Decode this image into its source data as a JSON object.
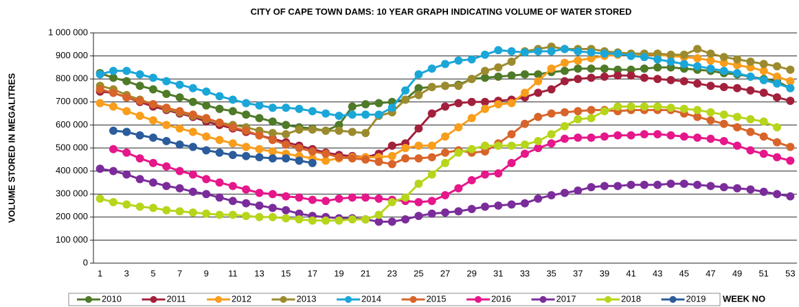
{
  "chart_data": {
    "type": "line",
    "title": "CITY OF CAPE TOWN DAMS: 10 YEAR GRAPH INDICATING VOLUME OF WATER STORED",
    "y_label": "VOLUME STORED IN MEGALITRES",
    "x_label": "WEEK NO",
    "legend": "bottom",
    "grid": true,
    "ylim": [
      0,
      1000000
    ],
    "yticks": [
      0,
      {
        "value": 100000,
        "label": "100 000"
      },
      {
        "value": 200000,
        "label": "200 000"
      },
      {
        "value": 300000,
        "label": "300 000"
      },
      {
        "value": 400000,
        "label": "400 000"
      },
      {
        "value": 500000,
        "label": "500 000"
      },
      {
        "value": 600000,
        "label": "600 000"
      },
      {
        "value": 700000,
        "label": "700 000"
      },
      {
        "value": 800000,
        "label": "800 000"
      },
      {
        "value": 900000,
        "label": "900 000"
      },
      {
        "value": 1000000,
        "label": "1 000 000"
      }
    ],
    "categories": [
      1,
      null,
      3,
      null,
      5,
      null,
      7,
      null,
      9,
      null,
      11,
      null,
      13,
      null,
      15,
      null,
      17,
      null,
      19,
      null,
      21,
      null,
      23,
      null,
      25,
      null,
      27,
      null,
      29,
      null,
      31,
      null,
      33,
      null,
      35,
      null,
      37,
      null,
      39,
      null,
      41,
      null,
      43,
      null,
      45,
      null,
      47,
      null,
      49,
      null,
      51,
      null,
      53
    ],
    "series": [
      {
        "name": "2010",
        "color": "#4f7a28",
        "values": [
          825000,
          805000,
          790000,
          770000,
          755000,
          735000,
          720000,
          700000,
          685000,
          670000,
          660000,
          645000,
          630000,
          615000,
          600000,
          590000,
          585000,
          575000,
          600000,
          680000,
          690000,
          695000,
          700000,
          710000,
          760000,
          765000,
          770000,
          775000,
          800000,
          805000,
          810000,
          815000,
          820000,
          820000,
          830000,
          835000,
          845000,
          845000,
          845000,
          840000,
          840000,
          845000,
          850000,
          850000,
          845000,
          840000,
          835000,
          825000,
          820000,
          810000,
          800000,
          790000,
          760000
        ]
      },
      {
        "name": "2011",
        "color": "#a3203c",
        "values": [
          745000,
          740000,
          720000,
          700000,
          680000,
          665000,
          650000,
          635000,
          615000,
          600000,
          585000,
          570000,
          555000,
          540000,
          525000,
          510000,
          495000,
          480000,
          470000,
          465000,
          460000,
          475000,
          510000,
          520000,
          585000,
          650000,
          680000,
          695000,
          700000,
          700000,
          705000,
          710000,
          720000,
          740000,
          755000,
          790000,
          800000,
          805000,
          810000,
          815000,
          815000,
          805000,
          800000,
          795000,
          790000,
          780000,
          770000,
          765000,
          760000,
          750000,
          740000,
          720000,
          705000
        ]
      },
      {
        "name": "2012",
        "color": "#f99d1c",
        "values": [
          695000,
          680000,
          660000,
          640000,
          620000,
          600000,
          585000,
          570000,
          550000,
          535000,
          520000,
          505000,
          495000,
          485000,
          475000,
          465000,
          455000,
          445000,
          455000,
          460000,
          460000,
          460000,
          465000,
          500000,
          510000,
          510000,
          550000,
          590000,
          630000,
          670000,
          690000,
          695000,
          740000,
          790000,
          845000,
          870000,
          880000,
          890000,
          900000,
          905000,
          905000,
          905000,
          905000,
          900000,
          895000,
          890000,
          880000,
          870000,
          860000,
          850000,
          835000,
          810000,
          790000
        ]
      },
      {
        "name": "2013",
        "color": "#9c8b2e",
        "values": [
          770000,
          755000,
          730000,
          710000,
          690000,
          670000,
          655000,
          640000,
          625000,
          610000,
          600000,
          590000,
          575000,
          565000,
          560000,
          580000,
          580000,
          575000,
          575000,
          570000,
          565000,
          640000,
          655000,
          710000,
          730000,
          765000,
          770000,
          770000,
          800000,
          835000,
          850000,
          875000,
          920000,
          930000,
          940000,
          930000,
          930000,
          930000,
          920000,
          915000,
          910000,
          910000,
          910000,
          905000,
          905000,
          930000,
          910000,
          895000,
          885000,
          875000,
          865000,
          855000,
          840000
        ]
      },
      {
        "name": "2014",
        "color": "#1ba6d8",
        "values": [
          820000,
          835000,
          835000,
          820000,
          805000,
          790000,
          775000,
          760000,
          745000,
          725000,
          710000,
          695000,
          685000,
          675000,
          675000,
          670000,
          660000,
          650000,
          640000,
          645000,
          645000,
          645000,
          675000,
          750000,
          820000,
          845000,
          865000,
          880000,
          885000,
          905000,
          925000,
          920000,
          915000,
          920000,
          920000,
          930000,
          920000,
          915000,
          910000,
          910000,
          900000,
          895000,
          885000,
          875000,
          865000,
          855000,
          845000,
          835000,
          825000,
          810000,
          795000,
          780000,
          760000
        ]
      },
      {
        "name": "2015",
        "color": "#d8642a",
        "values": [
          755000,
          740000,
          720000,
          705000,
          690000,
          675000,
          660000,
          645000,
          630000,
          610000,
          590000,
          575000,
          555000,
          535000,
          515000,
          500000,
          485000,
          475000,
          460000,
          455000,
          450000,
          440000,
          430000,
          455000,
          455000,
          460000,
          480000,
          490000,
          480000,
          485000,
          520000,
          560000,
          605000,
          635000,
          650000,
          655000,
          660000,
          665000,
          665000,
          660000,
          665000,
          665000,
          665000,
          665000,
          650000,
          635000,
          620000,
          605000,
          590000,
          570000,
          550000,
          525000,
          505000
        ]
      },
      {
        "name": "2016",
        "color": "#e5178a",
        "values": [
          null,
          495000,
          480000,
          455000,
          435000,
          420000,
          400000,
          385000,
          365000,
          350000,
          335000,
          320000,
          305000,
          300000,
          290000,
          285000,
          275000,
          270000,
          280000,
          285000,
          285000,
          280000,
          275000,
          270000,
          265000,
          270000,
          295000,
          325000,
          360000,
          385000,
          390000,
          435000,
          475000,
          500000,
          520000,
          540000,
          545000,
          545000,
          550000,
          555000,
          555000,
          560000,
          560000,
          555000,
          550000,
          545000,
          540000,
          530000,
          510000,
          490000,
          475000,
          460000,
          445000
        ]
      },
      {
        "name": "2017",
        "color": "#7b2c9b",
        "values": [
          410000,
          400000,
          385000,
          365000,
          350000,
          335000,
          325000,
          310000,
          300000,
          285000,
          270000,
          260000,
          250000,
          240000,
          230000,
          215000,
          205000,
          200000,
          195000,
          195000,
          190000,
          180000,
          180000,
          190000,
          205000,
          215000,
          220000,
          225000,
          235000,
          245000,
          250000,
          255000,
          260000,
          280000,
          295000,
          305000,
          315000,
          330000,
          335000,
          335000,
          340000,
          340000,
          340000,
          345000,
          345000,
          340000,
          335000,
          330000,
          325000,
          320000,
          310000,
          300000,
          290000
        ]
      },
      {
        "name": "2018",
        "color": "#b7d51b",
        "values": [
          280000,
          265000,
          255000,
          245000,
          240000,
          230000,
          225000,
          220000,
          215000,
          210000,
          210000,
          205000,
          200000,
          200000,
          195000,
          190000,
          185000,
          185000,
          185000,
          190000,
          190000,
          210000,
          265000,
          285000,
          345000,
          385000,
          435000,
          480000,
          495000,
          510000,
          510000,
          510000,
          515000,
          530000,
          560000,
          595000,
          625000,
          630000,
          660000,
          680000,
          680000,
          680000,
          680000,
          675000,
          670000,
          665000,
          655000,
          645000,
          635000,
          625000,
          615000,
          590000,
          null
        ]
      },
      {
        "name": "2019",
        "color": "#2b5c9c",
        "values": [
          null,
          575000,
          570000,
          555000,
          545000,
          530000,
          515000,
          505000,
          490000,
          480000,
          470000,
          465000,
          460000,
          455000,
          455000,
          445000,
          435000,
          null,
          null,
          null,
          null,
          null,
          null,
          null,
          null,
          null,
          null,
          null,
          null,
          null,
          null,
          null,
          null,
          null,
          null,
          null,
          null,
          null,
          null,
          null,
          null,
          null,
          null,
          null,
          null,
          null,
          null,
          null,
          null,
          null,
          null,
          null,
          null
        ]
      }
    ]
  }
}
